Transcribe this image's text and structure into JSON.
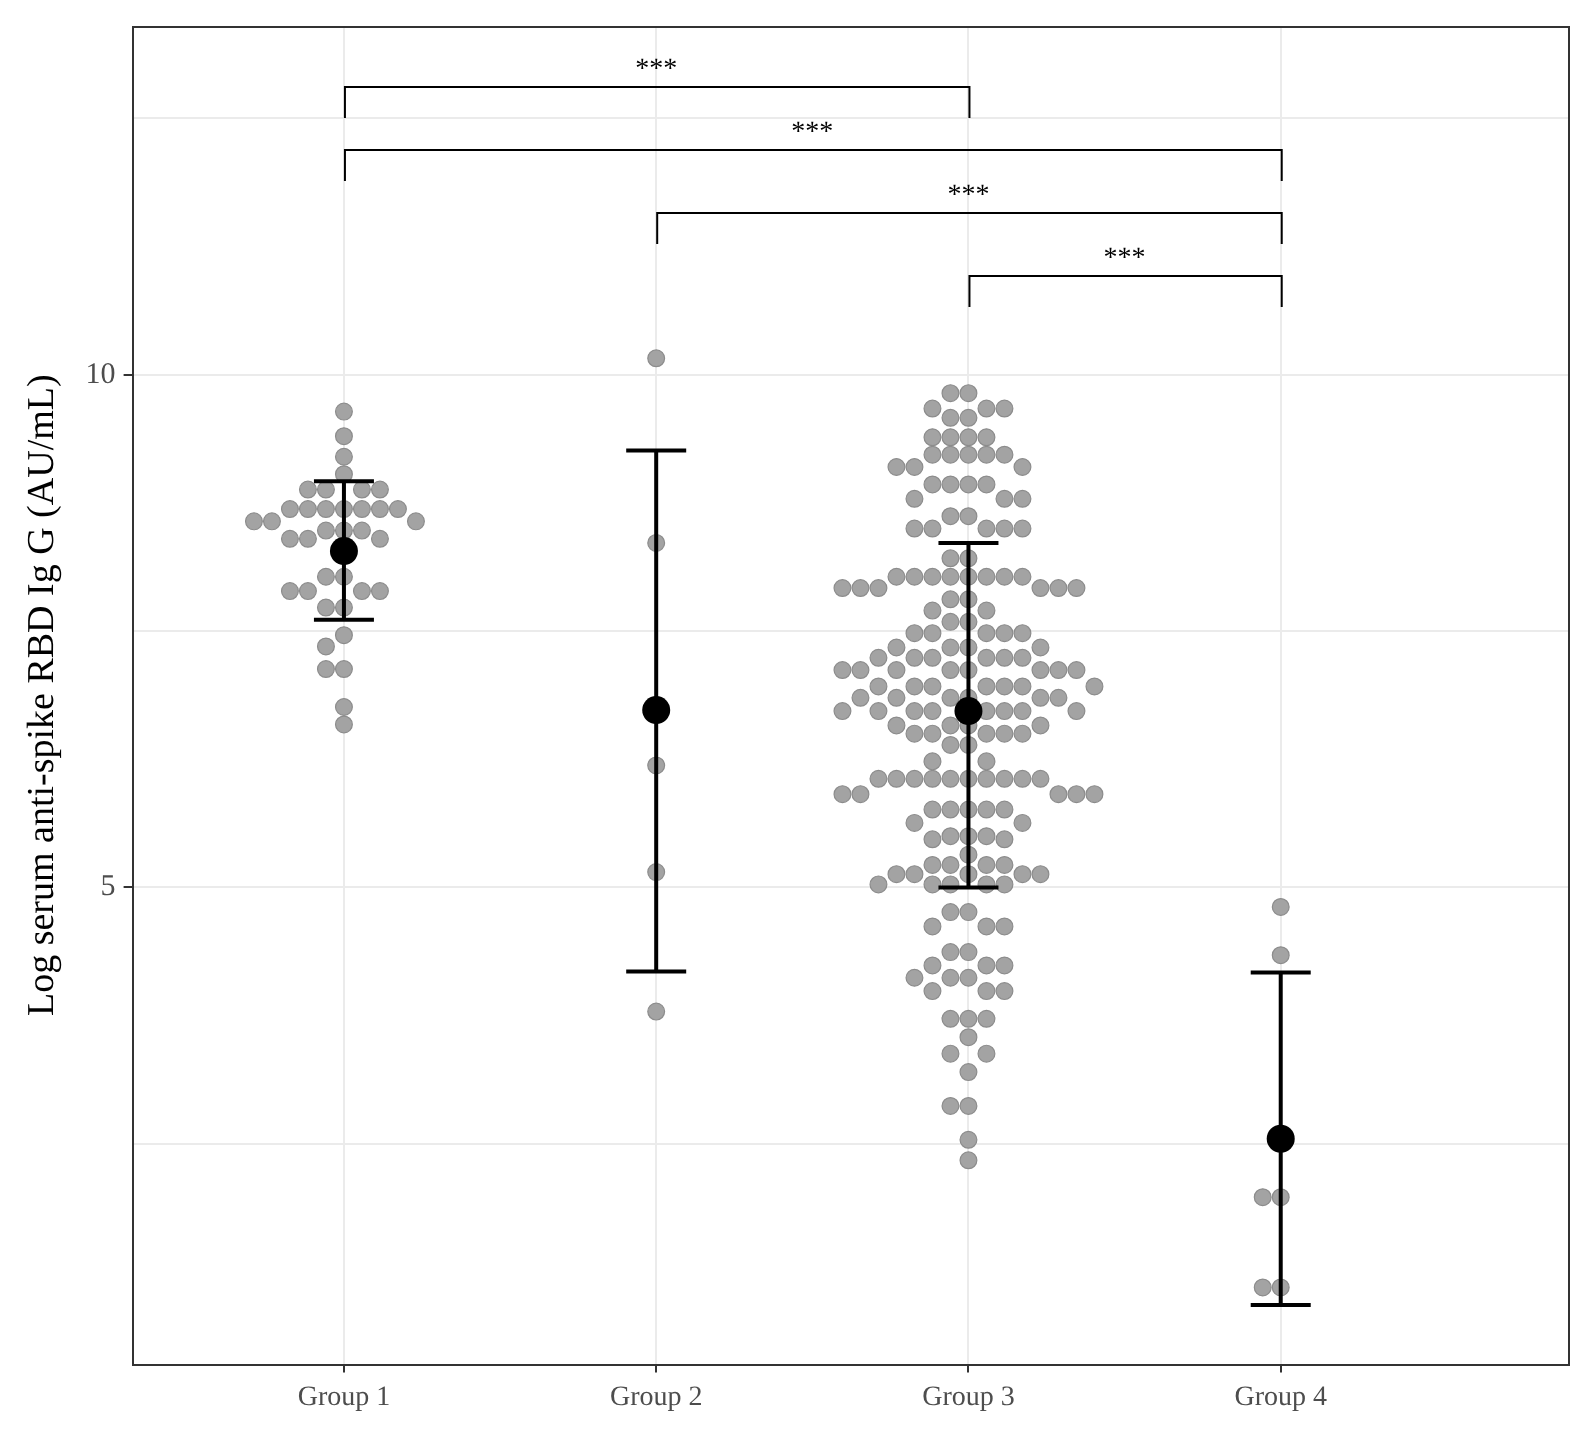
{
  "chart_data": {
    "type": "scatter",
    "ylabel": "Log serum anti-spike RBD Ig G (AU/mL)",
    "categories": [
      "Group 1",
      "Group 2",
      "Group 3",
      "Group 4"
    ],
    "ylim": [
      0.35,
      13.4
    ],
    "yticks": [
      {
        "value": 2.5,
        "label": null
      },
      5,
      {
        "value": 7.5,
        "label": null
      },
      10,
      {
        "value": 12.5,
        "label": null
      }
    ],
    "grid": true,
    "legend": false,
    "marker": "circle",
    "annotations": [
      "***",
      "***",
      "***",
      "***"
    ],
    "series": [
      {
        "color": "#a3a3a3",
        "x": [
          "Group 1",
          "Group 1",
          "Group 1",
          "Group 1",
          "Group 1",
          "Group 1",
          "Group 1",
          "Group 1",
          "Group 1",
          "Group 1",
          "Group 1",
          "Group 1",
          "Group 1",
          "Group 1",
          "Group 1",
          "Group 1",
          "Group 1",
          "Group 1",
          "Group 1",
          "Group 1",
          "Group 1",
          "Group 1",
          "Group 1",
          "Group 1",
          "Group 1",
          "Group 1",
          "Group 1",
          "Group 1",
          "Group 1",
          "Group 1",
          "Group 1",
          "Group 1",
          "Group 1",
          "Group 1",
          "Group 1",
          "Group 1",
          "Group 1",
          "Group 1"
        ],
        "values": [
          9.64,
          9.4,
          9.2,
          9.03,
          8.88,
          8.88,
          8.88,
          8.88,
          8.69,
          8.69,
          8.69,
          8.69,
          8.69,
          8.69,
          8.69,
          8.57,
          8.57,
          8.57,
          8.48,
          8.48,
          8.48,
          8.4,
          8.4,
          8.4,
          8.03,
          8.03,
          7.89,
          7.89,
          7.89,
          7.89,
          7.73,
          7.73,
          7.46,
          7.35,
          7.13,
          7.13,
          6.76,
          6.59
        ]
      },
      {
        "color": "#a3a3a3",
        "x": [
          "Group 2",
          "Group 2",
          "Group 2",
          "Group 2",
          "Group 2"
        ],
        "values": [
          10.16,
          8.36,
          6.19,
          5.15,
          3.79
        ]
      },
      {
        "color": "#a3a3a3",
        "x": [
          "Group 3",
          "Group 3",
          "Group 3",
          "Group 3",
          "Group 3",
          "Group 3",
          "Group 3",
          "Group 3",
          "Group 3",
          "Group 3",
          "Group 3",
          "Group 3",
          "Group 3",
          "Group 3",
          "Group 3",
          "Group 3",
          "Group 3",
          "Group 3",
          "Group 3",
          "Group 3",
          "Group 3",
          "Group 3",
          "Group 3",
          "Group 3",
          "Group 3",
          "Group 3",
          "Group 3",
          "Group 3",
          "Group 3",
          "Group 3",
          "Group 3",
          "Group 3",
          "Group 3",
          "Group 3",
          "Group 3",
          "Group 3",
          "Group 3",
          "Group 3",
          "Group 3",
          "Group 3",
          "Group 3",
          "Group 3",
          "Group 3",
          "Group 3",
          "Group 3",
          "Group 3",
          "Group 3",
          "Group 3",
          "Group 3",
          "Group 3",
          "Group 3",
          "Group 3",
          "Group 3",
          "Group 3",
          "Group 3",
          "Group 3",
          "Group 3",
          "Group 3",
          "Group 3",
          "Group 3",
          "Group 3",
          "Group 3",
          "Group 3",
          "Group 3",
          "Group 3",
          "Group 3",
          "Group 3",
          "Group 3",
          "Group 3",
          "Group 3",
          "Group 3",
          "Group 3",
          "Group 3",
          "Group 3",
          "Group 3",
          "Group 3",
          "Group 3",
          "Group 3",
          "Group 3",
          "Group 3",
          "Group 3",
          "Group 3",
          "Group 3",
          "Group 3",
          "Group 3",
          "Group 3",
          "Group 3",
          "Group 3",
          "Group 3",
          "Group 3",
          "Group 3",
          "Group 3",
          "Group 3",
          "Group 3",
          "Group 3",
          "Group 3",
          "Group 3",
          "Group 3",
          "Group 3",
          "Group 3",
          "Group 3",
          "Group 3",
          "Group 3",
          "Group 3",
          "Group 3",
          "Group 3",
          "Group 3",
          "Group 3",
          "Group 3",
          "Group 3",
          "Group 3",
          "Group 3",
          "Group 3",
          "Group 3",
          "Group 3",
          "Group 3",
          "Group 3",
          "Group 3",
          "Group 3",
          "Group 3",
          "Group 3",
          "Group 3",
          "Group 3",
          "Group 3",
          "Group 3",
          "Group 3",
          "Group 3",
          "Group 3",
          "Group 3",
          "Group 3",
          "Group 3",
          "Group 3",
          "Group 3",
          "Group 3",
          "Group 3",
          "Group 3",
          "Group 3",
          "Group 3",
          "Group 3",
          "Group 3",
          "Group 3",
          "Group 3",
          "Group 3",
          "Group 3",
          "Group 3",
          "Group 3",
          "Group 3",
          "Group 3",
          "Group 3",
          "Group 3",
          "Group 3",
          "Group 3",
          "Group 3",
          "Group 3",
          "Group 3",
          "Group 3",
          "Group 3",
          "Group 3",
          "Group 3",
          "Group 3",
          "Group 3",
          "Group 3",
          "Group 3",
          "Group 3",
          "Group 3",
          "Group 3",
          "Group 3",
          "Group 3",
          "Group 3",
          "Group 3",
          "Group 3",
          "Group 3",
          "Group 3",
          "Group 3",
          "Group 3",
          "Group 3",
          "Group 3",
          "Group 3",
          "Group 3",
          "Group 3",
          "Group 3"
        ],
        "values": [
          9.82,
          9.82,
          9.67,
          9.67,
          9.67,
          9.58,
          9.58,
          9.39,
          9.39,
          9.39,
          9.39,
          9.22,
          9.22,
          9.22,
          9.22,
          9.22,
          9.1,
          9.1,
          9.1,
          8.93,
          8.93,
          8.93,
          8.93,
          8.79,
          8.79,
          8.79,
          8.62,
          8.62,
          8.5,
          8.5,
          8.5,
          8.5,
          8.5,
          8.21,
          8.21,
          8.03,
          8.03,
          8.03,
          8.03,
          8.03,
          8.03,
          8.03,
          8.03,
          7.92,
          7.92,
          7.92,
          7.92,
          7.92,
          7.92,
          7.81,
          7.81,
          7.7,
          7.7,
          7.59,
          7.59,
          7.48,
          7.48,
          7.48,
          7.48,
          7.48,
          7.34,
          7.34,
          7.34,
          7.34,
          7.24,
          7.24,
          7.24,
          7.24,
          7.24,
          7.24,
          7.12,
          7.12,
          7.12,
          7.12,
          7.12,
          7.12,
          7.12,
          7.12,
          6.96,
          6.96,
          6.96,
          6.96,
          6.96,
          6.96,
          6.96,
          6.85,
          6.85,
          6.85,
          6.85,
          6.85,
          6.85,
          6.72,
          6.72,
          6.72,
          6.72,
          6.72,
          6.72,
          6.72,
          6.72,
          6.58,
          6.58,
          6.58,
          6.58,
          6.5,
          6.5,
          6.5,
          6.5,
          6.5,
          6.39,
          6.39,
          6.23,
          6.23,
          6.06,
          6.06,
          6.06,
          6.06,
          6.06,
          6.06,
          6.06,
          6.06,
          6.06,
          6.06,
          5.91,
          5.91,
          5.91,
          5.91,
          5.91,
          5.76,
          5.76,
          5.76,
          5.76,
          5.76,
          5.63,
          5.63,
          5.5,
          5.5,
          5.5,
          5.47,
          5.47,
          5.32,
          5.22,
          5.22,
          5.22,
          5.22,
          5.13,
          5.13,
          5.13,
          5.13,
          5.13,
          5.03,
          5.03,
          5.03,
          5.03,
          5.03,
          4.76,
          4.76,
          4.62,
          4.62,
          4.62,
          4.37,
          4.37,
          4.24,
          4.24,
          4.24,
          4.12,
          4.12,
          4.12,
          3.99,
          3.99,
          3.99,
          3.72,
          3.72,
          3.72,
          3.54,
          3.38,
          3.38,
          3.2,
          2.87,
          2.87,
          2.54,
          2.34
        ]
      },
      {
        "color": "#a3a3a3",
        "x": [
          "Group 4",
          "Group 4",
          "Group 4",
          "Group 4",
          "Group 4",
          "Group 4"
        ],
        "values": [
          4.81,
          4.34,
          1.98,
          1.98,
          1.1,
          1.1
        ]
      },
      {
        "color": "#000000",
        "x": [
          "Group 1",
          "Group 2",
          "Group 3",
          "Group 4"
        ],
        "values": [
          8.28,
          6.73,
          6.72,
          2.55
        ],
        "errors": [
          [
            7.61,
            8.96
          ],
          [
            4.18,
            9.26
          ],
          [
            5.0,
            8.36
          ],
          [
            0.93,
            4.17
          ]
        ]
      }
    ]
  }
}
